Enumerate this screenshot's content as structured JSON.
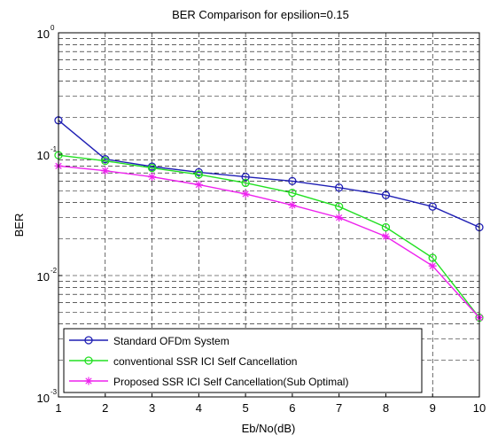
{
  "chart_data": {
    "type": "line",
    "title": "BER Comparison for epsilion=0.15",
    "xlabel": "Eb/No(dB)",
    "ylabel": "BER",
    "x": [
      1,
      2,
      3,
      4,
      5,
      6,
      7,
      8,
      9,
      10
    ],
    "xlim": [
      1,
      10
    ],
    "ylim": [
      0.001,
      1
    ],
    "yscale": "log",
    "grid": "dashed, major and minor",
    "legend_position": "bottom-left",
    "x_ticks": [
      "1",
      "2",
      "3",
      "4",
      "5",
      "6",
      "7",
      "8",
      "9",
      "10"
    ],
    "y_ticks": [
      {
        "value": 1,
        "base": "10",
        "exp": "0"
      },
      {
        "value": 0.1,
        "base": "10",
        "exp": "-1"
      },
      {
        "value": 0.01,
        "base": "10",
        "exp": "-2"
      },
      {
        "value": 0.001,
        "base": "10",
        "exp": "-3"
      }
    ],
    "series": [
      {
        "name": "Standard OFDm System",
        "color": "#1f1fb4",
        "marker": "circle",
        "values": [
          0.19,
          0.091,
          0.079,
          0.071,
          0.065,
          0.06,
          0.053,
          0.046,
          0.037,
          0.025
        ]
      },
      {
        "name": "conventional SSR ICI Self Cancellation",
        "color": "#22e022",
        "marker": "circle",
        "values": [
          0.098,
          0.088,
          0.077,
          0.068,
          0.058,
          0.048,
          0.037,
          0.025,
          0.014,
          0.0045
        ]
      },
      {
        "name": "Proposed SSR ICI Self Cancellation(Sub Optimal)",
        "color": "#ee22ee",
        "marker": "star",
        "values": [
          0.08,
          0.073,
          0.065,
          0.056,
          0.047,
          0.038,
          0.03,
          0.021,
          0.012,
          0.0045
        ]
      }
    ]
  }
}
